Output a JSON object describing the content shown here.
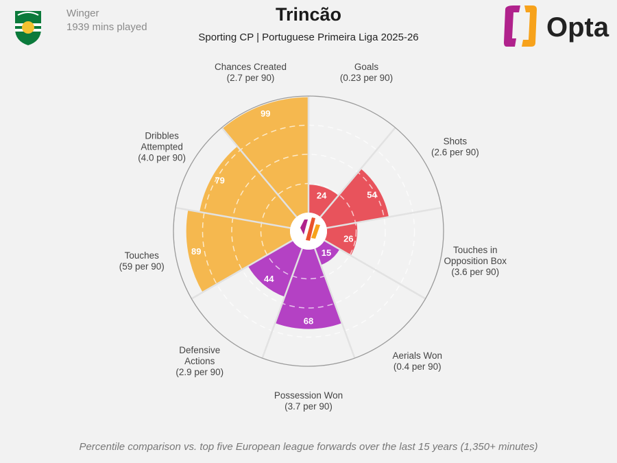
{
  "header": {
    "position": "Winger",
    "minutes": "1939 mins played",
    "title": "Trincão",
    "subtitle": "Sporting CP | Portuguese Primeira Liga 2025-26",
    "brand": "Opta"
  },
  "footer": "Percentile comparison vs. top five European league forwards over the last 15 years (1,350+ minutes)",
  "colors": {
    "attacking": "#E8535C",
    "defending": "#B441C4",
    "possession": "#F5B84F",
    "background": "#f2f2f2"
  },
  "chart_data": {
    "type": "pizza",
    "scale": [
      0,
      100
    ],
    "gridlines": [
      25,
      50,
      75
    ],
    "categories": [
      {
        "name": "Goals",
        "per90": "(0.23 per 90)",
        "value": 24,
        "group": "attacking"
      },
      {
        "name": "Shots",
        "per90": "(2.6 per 90)",
        "value": 54,
        "group": "attacking"
      },
      {
        "name": "Touches in|Opposition Box",
        "per90": "(3.6 per 90)",
        "value": 26,
        "group": "attacking"
      },
      {
        "name": "Aerials Won",
        "per90": "(0.4 per 90)",
        "value": 15,
        "group": "defending"
      },
      {
        "name": "Possession Won",
        "per90": "(3.7 per 90)",
        "value": 68,
        "group": "defending"
      },
      {
        "name": "Defensive|Actions",
        "per90": "(2.9 per 90)",
        "value": 44,
        "group": "defending"
      },
      {
        "name": "Touches",
        "per90": "(59 per 90)",
        "value": 89,
        "group": "possession"
      },
      {
        "name": "Dribbles|Attempted",
        "per90": "(4.0 per 90)",
        "value": 79,
        "group": "possession"
      },
      {
        "name": "Chances Created",
        "per90": "(2.7 per 90)",
        "value": 99,
        "group": "possession"
      }
    ]
  }
}
